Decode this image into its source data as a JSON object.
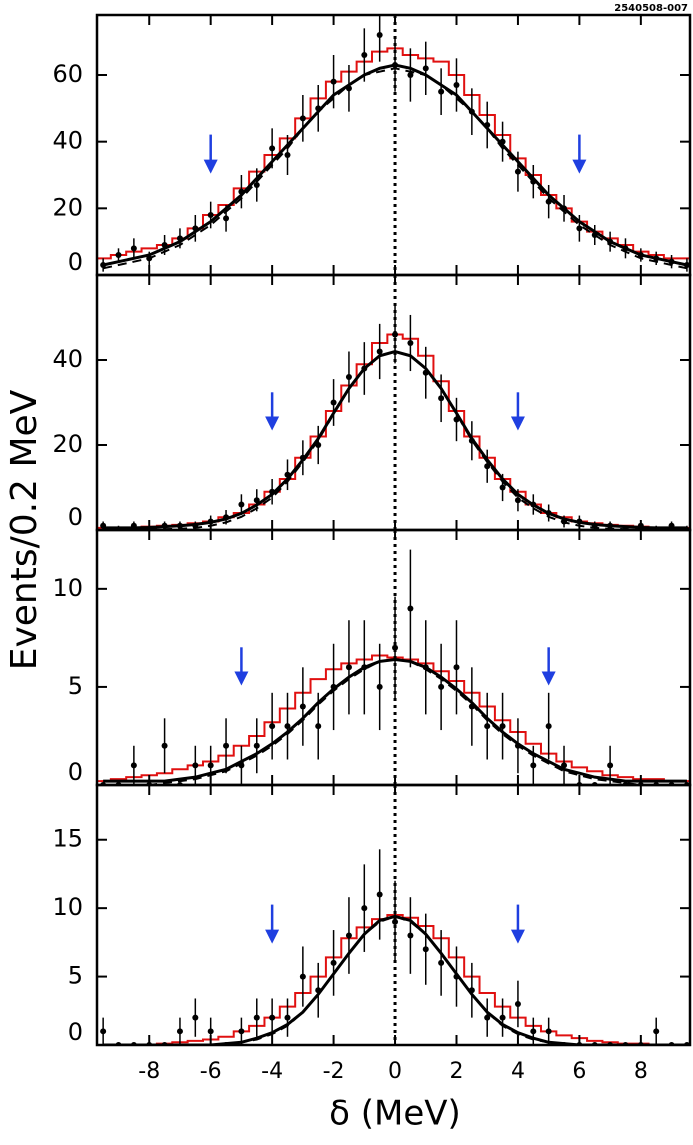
{
  "figure_id": "2540508-007",
  "ylabel": "Events/0.2 MeV",
  "xlabel": "δ (MeV)",
  "chart_data": [
    {
      "type": "line",
      "xlim": [
        -9.7,
        9.6
      ],
      "xticks": [
        -8,
        -6,
        -4,
        -2,
        0,
        2,
        4,
        6,
        8
      ],
      "ylim": [
        0,
        78
      ],
      "yticks": [
        0,
        20,
        40,
        60
      ],
      "vline": 0,
      "arrows": [
        -6,
        6
      ],
      "arrow_color": "#1f3fe0",
      "x": [
        -9.5,
        -9,
        -8.5,
        -8,
        -7.5,
        -7,
        -6.5,
        -6,
        -5.5,
        -5,
        -4.5,
        -4,
        -3.5,
        -3,
        -2.5,
        -2,
        -1.5,
        -1,
        -0.5,
        0,
        0.5,
        1,
        1.5,
        2,
        2.5,
        3,
        3.5,
        4,
        4.5,
        5,
        5.5,
        6,
        6.5,
        7,
        7.5,
        8,
        8.5,
        9,
        9.5
      ],
      "series": [
        {
          "style": "step",
          "color": "#e01010",
          "values": [
            5,
            6,
            7,
            8,
            9,
            11,
            14,
            18,
            21,
            26,
            31,
            36,
            41,
            47,
            53,
            58,
            61,
            64,
            67,
            68,
            66,
            65,
            64,
            60,
            54,
            48,
            42,
            35,
            30,
            24,
            20,
            16,
            13,
            11,
            9,
            7,
            6,
            5,
            5
          ]
        },
        {
          "style": "dashed",
          "color": "#000000",
          "values": [
            2,
            3,
            4,
            5,
            7,
            9,
            12,
            15,
            19,
            23,
            28,
            33,
            38,
            44,
            49,
            53,
            57,
            60,
            61,
            62,
            61,
            60,
            57,
            53,
            49,
            44,
            38,
            33,
            28,
            23,
            19,
            15,
            12,
            9,
            7,
            5,
            4,
            3,
            2
          ]
        },
        {
          "style": "line",
          "color": "#000000",
          "values": [
            3,
            4,
            5,
            6,
            8,
            10,
            13,
            16,
            20,
            24,
            29,
            34,
            39,
            44,
            49,
            54,
            57,
            60,
            62,
            63,
            62,
            60,
            57,
            54,
            49,
            44,
            39,
            34,
            29,
            24,
            20,
            16,
            13,
            10,
            8,
            6,
            5,
            4,
            3
          ]
        },
        {
          "style": "points",
          "color": "#000000",
          "values": [
            3,
            6,
            8,
            5,
            9,
            11,
            14,
            18,
            17,
            25,
            27,
            38,
            36,
            47,
            50,
            58,
            56,
            66,
            72,
            63,
            60,
            62,
            55,
            57,
            49,
            45,
            40,
            31,
            28,
            22,
            20,
            14,
            12,
            10,
            8,
            6,
            5,
            4,
            3
          ],
          "errors": [
            2,
            2,
            3,
            2,
            3,
            3,
            4,
            4,
            4,
            5,
            5,
            6,
            6,
            7,
            7,
            8,
            7,
            8,
            8,
            8,
            8,
            8,
            7,
            8,
            7,
            7,
            6,
            6,
            5,
            5,
            4,
            4,
            3,
            3,
            3,
            2,
            2,
            2,
            2
          ]
        }
      ]
    },
    {
      "type": "line",
      "xlim": [
        -9.7,
        9.6
      ],
      "xticks": [
        -8,
        -6,
        -4,
        -2,
        0,
        2,
        4,
        6,
        8
      ],
      "ylim": [
        0,
        60
      ],
      "yticks": [
        0,
        20,
        40
      ],
      "vline": 0,
      "arrows": [
        -4,
        4
      ],
      "arrow_color": "#1f3fe0",
      "x": [
        -9.5,
        -9,
        -8.5,
        -8,
        -7.5,
        -7,
        -6.5,
        -6,
        -5.5,
        -5,
        -4.5,
        -4,
        -3.5,
        -3,
        -2.5,
        -2,
        -1.5,
        -1,
        -0.5,
        0,
        0.5,
        1,
        1.5,
        2,
        2.5,
        3,
        3.5,
        4,
        4.5,
        5,
        5.5,
        6,
        6.5,
        7,
        7.5,
        8,
        8.5,
        9,
        9.5
      ],
      "series": [
        {
          "style": "step",
          "color": "#e01010",
          "values": [
            0.5,
            0.5,
            0.6,
            0.8,
            1,
            1.2,
            1.6,
            2,
            3,
            4,
            6,
            9,
            12,
            17,
            22,
            28,
            34,
            39,
            44,
            46,
            45,
            41,
            35,
            28,
            22,
            17,
            12,
            9,
            6,
            4,
            3,
            2,
            1.6,
            1.2,
            1,
            0.8,
            0.6,
            0.5,
            0.5
          ]
        },
        {
          "style": "dashed",
          "color": "#000000",
          "values": [
            0,
            0,
            0,
            0.1,
            0.2,
            0.3,
            0.5,
            1,
            1.8,
            3.1,
            5.1,
            7.6,
            11.4,
            16,
            21.1,
            27.3,
            33.2,
            37.9,
            40.9,
            42,
            40.9,
            37.9,
            33.2,
            27.3,
            21.1,
            16,
            11.4,
            7.6,
            5.1,
            3.1,
            1.8,
            1,
            0.5,
            0.3,
            0.2,
            0.1,
            0,
            0,
            0
          ]
        },
        {
          "style": "line",
          "color": "#000000",
          "values": [
            0.5,
            0.5,
            0.5,
            0.6,
            0.8,
            1,
            1.3,
            1.8,
            2.6,
            3.9,
            5.9,
            8.4,
            12,
            16.5,
            21.5,
            27.5,
            33.3,
            38,
            41,
            42,
            41,
            38,
            33.3,
            27.5,
            21.5,
            16.5,
            12,
            8.4,
            5.9,
            3.9,
            2.6,
            1.8,
            1.3,
            1,
            0.8,
            0.6,
            0.5,
            0.5,
            0.5
          ]
        },
        {
          "style": "points",
          "color": "#000000",
          "values": [
            1,
            0,
            1,
            0,
            1,
            1,
            1,
            2,
            3,
            6,
            7,
            9,
            13,
            17,
            20,
            30,
            36,
            38,
            42,
            46,
            44,
            37,
            31,
            26,
            21,
            15,
            10,
            7,
            6,
            4,
            2,
            2,
            1,
            1,
            0,
            1,
            0,
            1,
            0
          ],
          "errors": [
            1,
            1,
            1,
            1,
            1,
            1,
            1,
            1.4,
            1.7,
            2.4,
            2.6,
            3,
            3.6,
            4.1,
            4.5,
            5.5,
            6,
            6.2,
            6.5,
            6.8,
            6.6,
            6.1,
            5.6,
            5.1,
            4.6,
            3.9,
            3.2,
            2.6,
            2.4,
            2,
            1.4,
            1.4,
            1,
            1,
            1,
            1,
            1,
            1,
            1
          ]
        }
      ]
    },
    {
      "type": "line",
      "xlim": [
        -9.7,
        9.6
      ],
      "xticks": [
        -8,
        -6,
        -4,
        -2,
        0,
        2,
        4,
        6,
        8
      ],
      "ylim": [
        0,
        13
      ],
      "yticks": [
        0,
        5,
        10
      ],
      "vline": 0,
      "arrows": [
        -5,
        5
      ],
      "arrow_color": "#1f3fe0",
      "x": [
        -9.5,
        -9,
        -8.5,
        -8,
        -7.5,
        -7,
        -6.5,
        -6,
        -5.5,
        -5,
        -4.5,
        -4,
        -3.5,
        -3,
        -2.5,
        -2,
        -1.5,
        -1,
        -0.5,
        0,
        0.5,
        1,
        1.5,
        2,
        2.5,
        3,
        3.5,
        4,
        4.5,
        5,
        5.5,
        6,
        6.5,
        7,
        7.5,
        8,
        8.5,
        9,
        9.5
      ],
      "series": [
        {
          "style": "step",
          "color": "#e01010",
          "values": [
            0.2,
            0.3,
            0.4,
            0.5,
            0.6,
            0.8,
            1,
            1.2,
            1.5,
            2,
            2.5,
            3.2,
            3.9,
            4.7,
            5.4,
            5.9,
            6.2,
            6.4,
            6.6,
            6.5,
            6.4,
            6.2,
            5.8,
            5.3,
            4.7,
            4,
            3.3,
            2.7,
            2.1,
            1.6,
            1.2,
            0.9,
            0.7,
            0.5,
            0.4,
            0.3,
            0.3,
            0.2,
            0.2
          ]
        },
        {
          "style": "dashed",
          "color": "#000000",
          "values": [
            0,
            0,
            0,
            0,
            0.1,
            0.2,
            0.3,
            0.5,
            0.7,
            1.1,
            1.5,
            2,
            2.6,
            3.3,
            4.1,
            4.8,
            5.4,
            5.9,
            6.3,
            6.4,
            6.3,
            5.9,
            5.4,
            4.8,
            4.1,
            3.3,
            2.6,
            2,
            1.5,
            1.1,
            0.7,
            0.5,
            0.3,
            0.2,
            0.1,
            0,
            0,
            0,
            0
          ]
        },
        {
          "style": "line",
          "color": "#000000",
          "values": [
            0.2,
            0.2,
            0.2,
            0.2,
            0.2,
            0.3,
            0.4,
            0.6,
            0.8,
            1.2,
            1.6,
            2.1,
            2.7,
            3.4,
            4.2,
            4.9,
            5.5,
            6,
            6.3,
            6.4,
            6.3,
            6,
            5.5,
            4.9,
            4.2,
            3.4,
            2.7,
            2.1,
            1.6,
            1.2,
            0.8,
            0.6,
            0.4,
            0.3,
            0.2,
            0.2,
            0.2,
            0.2,
            0.2
          ]
        },
        {
          "style": "points",
          "color": "#000000",
          "values": [
            0,
            0,
            1,
            0,
            2,
            0,
            1,
            1,
            2,
            1,
            2,
            3,
            3,
            4,
            3,
            5,
            6,
            6,
            5,
            7,
            9,
            6,
            5,
            6,
            4,
            3,
            3,
            2,
            1,
            3,
            1,
            0,
            0,
            1,
            0,
            0,
            0,
            0,
            0
          ],
          "errors": [
            0,
            0,
            1,
            0,
            1.4,
            0,
            1,
            1,
            1.4,
            1,
            1.4,
            1.7,
            1.7,
            2,
            1.7,
            2.2,
            2.4,
            2.4,
            2.2,
            2.6,
            3,
            2.4,
            2.2,
            2.4,
            2,
            1.7,
            1.7,
            1.4,
            1,
            1.7,
            1,
            0,
            0,
            1,
            0,
            0,
            0,
            0,
            0
          ]
        }
      ]
    },
    {
      "type": "line",
      "xlim": [
        -9.7,
        9.6
      ],
      "xticks": [
        -8,
        -6,
        -4,
        -2,
        0,
        2,
        4,
        6,
        8
      ],
      "ylim": [
        0,
        19
      ],
      "yticks": [
        0,
        5,
        10,
        15
      ],
      "vline": 0,
      "arrows": [
        -4,
        4
      ],
      "arrow_color": "#1f3fe0",
      "x": [
        -9.5,
        -9,
        -8.5,
        -8,
        -7.5,
        -7,
        -6.5,
        -6,
        -5.5,
        -5,
        -4.5,
        -4,
        -3.5,
        -3,
        -2.5,
        -2,
        -1.5,
        -1,
        -0.5,
        0,
        0.5,
        1,
        1.5,
        2,
        2.5,
        3,
        3.5,
        4,
        4.5,
        5,
        5.5,
        6,
        6.5,
        7,
        7.5,
        8,
        8.5,
        9,
        9.5
      ],
      "series": [
        {
          "style": "step",
          "color": "#e01010",
          "values": [
            0,
            0,
            0,
            0,
            0.1,
            0.2,
            0.3,
            0.4,
            0.6,
            1,
            1.4,
            2,
            2.8,
            3.8,
            5,
            6.4,
            7.8,
            8.6,
            9.2,
            9.5,
            9.3,
            8.7,
            7.8,
            6.4,
            5,
            3.8,
            2.8,
            2,
            1.4,
            1,
            0.7,
            0.5,
            0.3,
            0.2,
            0.1,
            0.1,
            0,
            0,
            0
          ]
        },
        {
          "style": "dashed",
          "color": "#000000",
          "values": [
            0,
            0,
            0,
            0,
            0,
            0,
            0,
            0,
            0.1,
            0.2,
            0.4,
            0.8,
            1.4,
            2.4,
            3.7,
            5.2,
            6.7,
            8.1,
            9,
            9.4,
            9,
            8.1,
            6.7,
            5.2,
            3.7,
            2.4,
            1.4,
            0.8,
            0.4,
            0.2,
            0.1,
            0,
            0,
            0,
            0,
            0,
            0,
            0,
            0
          ]
        },
        {
          "style": "line",
          "color": "#000000",
          "values": [
            0,
            0,
            0,
            0,
            0,
            0,
            0,
            0,
            0.1,
            0.2,
            0.5,
            0.9,
            1.5,
            2.4,
            3.7,
            5.2,
            6.7,
            8.1,
            9.1,
            9.4,
            9.1,
            8.1,
            6.7,
            5.2,
            3.7,
            2.4,
            1.5,
            0.9,
            0.5,
            0.2,
            0.1,
            0,
            0,
            0,
            0,
            0,
            0,
            0,
            0
          ]
        },
        {
          "style": "points",
          "color": "#000000",
          "values": [
            1,
            0,
            0,
            0,
            0,
            1,
            2,
            1,
            0,
            1,
            2,
            2,
            2,
            5,
            4,
            6,
            8,
            10,
            11,
            9,
            8,
            7,
            6,
            5,
            4,
            2,
            2,
            3,
            1,
            1,
            0,
            0,
            0,
            0,
            0,
            0,
            1,
            0,
            0
          ],
          "errors": [
            1,
            0,
            0,
            0,
            0,
            1,
            1.4,
            1,
            0,
            1,
            1.4,
            1.4,
            1.4,
            2.2,
            2,
            2.4,
            2.8,
            3.2,
            3.3,
            3,
            2.8,
            2.6,
            2.4,
            2.2,
            2,
            1.4,
            1.4,
            1.7,
            1,
            1,
            0,
            0,
            0,
            0,
            0,
            0,
            1,
            0,
            0
          ]
        }
      ]
    }
  ]
}
